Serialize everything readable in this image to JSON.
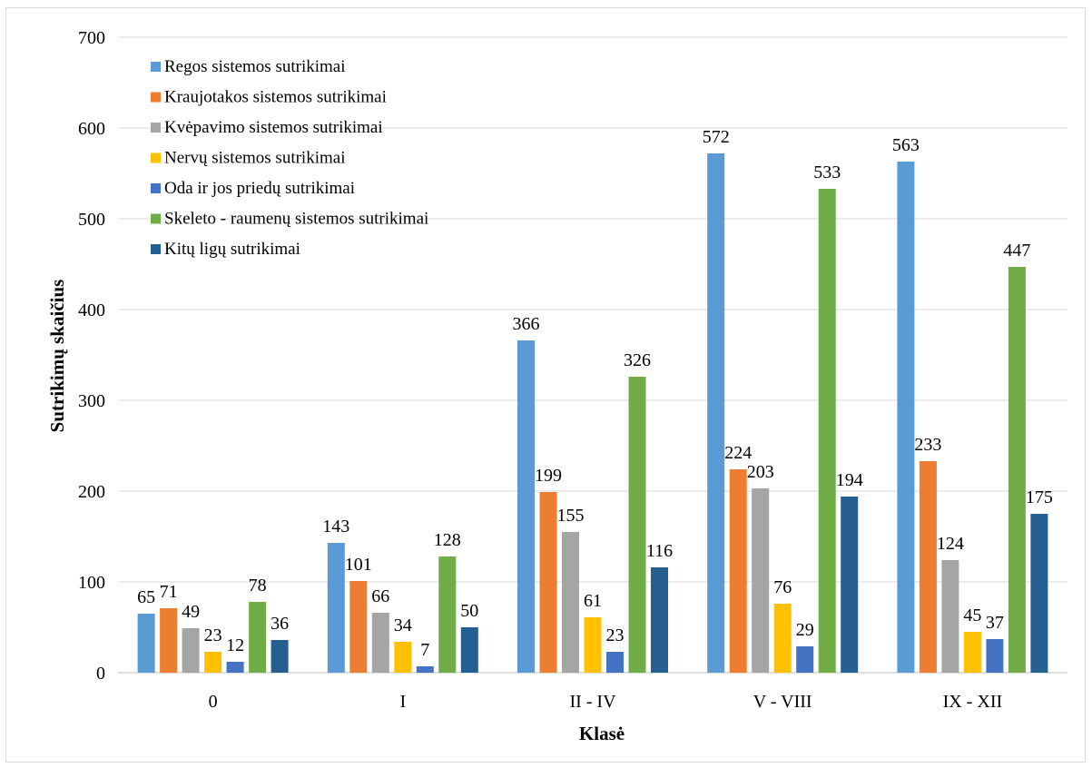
{
  "chart_data": {
    "type": "bar",
    "title": "",
    "xlabel": "Klasė",
    "ylabel": "Sutrikimų skaičius",
    "ylim": [
      0,
      700
    ],
    "yticks": [
      0,
      100,
      200,
      300,
      400,
      500,
      600,
      700
    ],
    "grid": true,
    "legend_position": "top-left",
    "categories": [
      "0",
      "I",
      "II - IV",
      "V - VIII",
      "IX - XII"
    ],
    "series": [
      {
        "name": "Regos sistemos sutrikimai",
        "color": "#5b9bd5",
        "values": [
          65,
          143,
          366,
          572,
          563
        ]
      },
      {
        "name": "Kraujotakos sistemos sutrikimai",
        "color": "#ed7d31",
        "values": [
          71,
          101,
          199,
          224,
          233
        ]
      },
      {
        "name": "Kvėpavimo sistemos sutrikimai",
        "color": "#a5a5a5",
        "values": [
          49,
          66,
          155,
          203,
          124
        ]
      },
      {
        "name": "Nervų sistemos sutrikimai",
        "color": "#ffc000",
        "values": [
          23,
          34,
          61,
          76,
          45
        ]
      },
      {
        "name": "Oda ir jos priedų sutrikimai",
        "color": "#4472c4",
        "values": [
          12,
          7,
          23,
          29,
          37
        ]
      },
      {
        "name": "Skeleto - raumenų sistemos sutrikimai",
        "color": "#70ad47",
        "values": [
          78,
          128,
          326,
          533,
          447
        ]
      },
      {
        "name": "Kitų ligų sutrikimai",
        "color": "#255e91",
        "values": [
          36,
          50,
          116,
          194,
          175
        ]
      }
    ]
  }
}
